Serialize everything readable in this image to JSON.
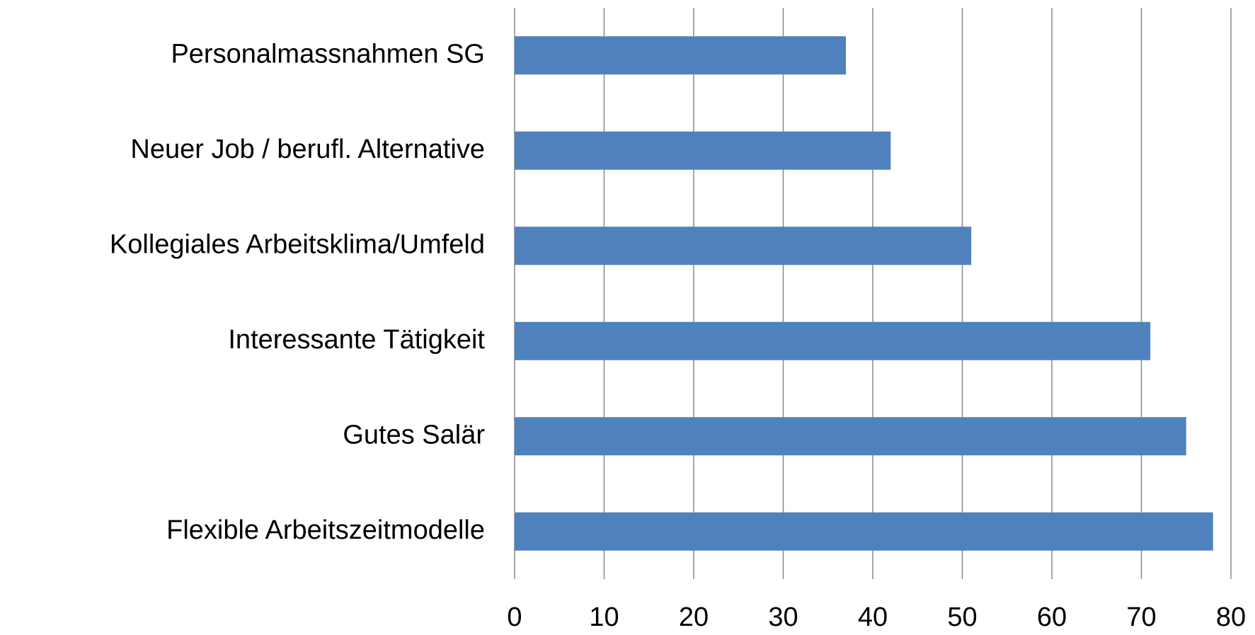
{
  "chart_data": {
    "type": "bar",
    "orientation": "horizontal",
    "categories": [
      "Personalmassnahmen SG",
      "Neuer Job / berufl. Alternative",
      "Kollegiales Arbeitsklima/Umfeld",
      "Interessante Tätigkeit",
      "Gutes Salär",
      "Flexible Arbeitszeitmodelle"
    ],
    "values": [
      37,
      42,
      51,
      71,
      75,
      78
    ],
    "color": "#4f81bd",
    "xlim": [
      0,
      80
    ],
    "xticks": [
      0,
      10,
      20,
      30,
      40,
      50,
      60,
      70,
      80
    ],
    "grid": true
  }
}
